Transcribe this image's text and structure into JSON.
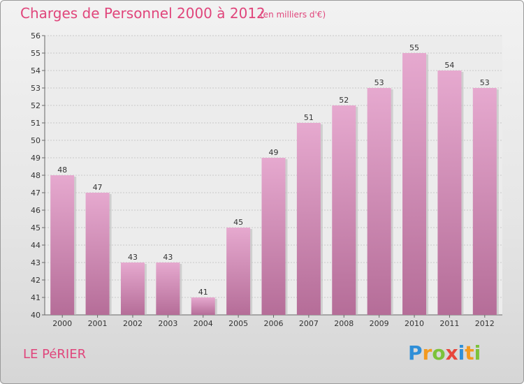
{
  "chart_data": {
    "type": "bar",
    "title": "Charges de Personnel 2000 à 2012",
    "subtitle": "(en milliers d'€)",
    "categories": [
      "2000",
      "2001",
      "2002",
      "2003",
      "2004",
      "2005",
      "2006",
      "2007",
      "2008",
      "2009",
      "2010",
      "2011",
      "2012"
    ],
    "values": [
      48,
      47,
      43,
      43,
      41,
      45,
      49,
      51,
      52,
      53,
      55,
      54,
      53
    ],
    "ylim": [
      40,
      56
    ],
    "yticks": [
      40,
      41,
      42,
      43,
      44,
      45,
      46,
      47,
      48,
      49,
      50,
      51,
      52,
      53,
      54,
      55,
      56
    ],
    "grid": true,
    "bar_color": "#d98fb8"
  },
  "commune": "LE PéRIER",
  "logo": {
    "letters": [
      "P",
      "r",
      "o",
      "x",
      "i",
      "t",
      "i"
    ],
    "colors": [
      "#2f8fd8",
      "#f39a1f",
      "#7cc23a",
      "#e8463c",
      "#2f8fd8",
      "#f39a1f",
      "#7cc23a"
    ]
  }
}
